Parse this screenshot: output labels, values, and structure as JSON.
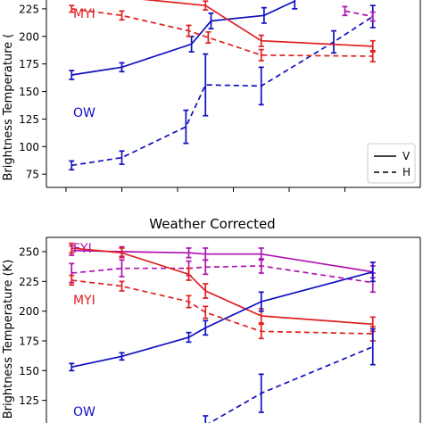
{
  "chart_data": [
    {
      "type": "line",
      "title": "",
      "ylabel": "Brightness Temperature (",
      "ylim": [
        63,
        233
      ],
      "yticks": [
        75,
        100,
        125,
        150,
        175,
        200,
        225
      ],
      "x": [
        0,
        1,
        2,
        3,
        4,
        5
      ],
      "series": [
        {
          "name": "V",
          "ice": "OW",
          "pol": "V",
          "color": "#1010c0",
          "style": "solid",
          "x": [
            0.1,
            1.0,
            2.25,
            2.6,
            3.55,
            4.1
          ],
          "values": [
            165,
            172,
            193,
            214,
            219,
            232
          ],
          "err": [
            4,
            4,
            7,
            7,
            7,
            7
          ]
        },
        {
          "name": "H",
          "ice": "OW",
          "pol": "H",
          "color": "#1010c0",
          "style": "dashed",
          "x": [
            0.1,
            1.0,
            2.15,
            2.5,
            3.5,
            4.8,
            5.5
          ],
          "values": [
            83,
            90,
            118,
            156,
            155,
            195,
            218
          ],
          "err": [
            4,
            6,
            15,
            28,
            17,
            10,
            10
          ]
        },
        {
          "name": "V",
          "ice": "MYI",
          "pol": "V",
          "color": "#e02020",
          "style": "solid",
          "x": [
            0.1,
            2.5,
            3.5,
            5.5
          ],
          "values": [
            240,
            228,
            196,
            191
          ],
          "err": [
            3,
            4,
            5,
            5
          ]
        },
        {
          "name": "H",
          "ice": "MYI",
          "pol": "H",
          "color": "#e02020",
          "style": "dashed",
          "x": [
            0.1,
            1.0,
            2.2,
            2.55,
            3.5,
            5.5
          ],
          "values": [
            225,
            219,
            205,
            199,
            183,
            182
          ],
          "err": [
            3,
            4,
            5,
            5,
            5,
            5
          ]
        },
        {
          "name": "H",
          "ice": "FYI",
          "pol": "H",
          "color": "#b010b0",
          "style": "dashed",
          "x": [
            5.0,
            5.5
          ],
          "values": [
            223,
            218
          ],
          "err": [
            4,
            4
          ]
        }
      ],
      "annotations": [
        {
          "text": "MYI",
          "color": "#e02020"
        },
        {
          "text": "OW",
          "color": "#1010c0"
        }
      ],
      "legend": {
        "placement": "bottom-right",
        "entries": [
          {
            "label": "V",
            "style": "solid"
          },
          {
            "label": "H",
            "style": "dashed"
          }
        ]
      }
    },
    {
      "type": "line",
      "title": "Weather Corrected",
      "ylabel": "Brightness Temperature (K)",
      "ylim": [
        106,
        262
      ],
      "yticks": [
        125,
        150,
        175,
        200,
        225,
        250
      ],
      "x": [
        0,
        1,
        2,
        3,
        4,
        5
      ],
      "series": [
        {
          "name": "V",
          "ice": "FYI",
          "pol": "V",
          "color": "#b010b0",
          "style": "solid",
          "x": [
            0.1,
            1.0,
            2.2,
            2.5,
            3.5,
            5.5
          ],
          "values": [
            251,
            250,
            249,
            248,
            248,
            233
          ],
          "err": [
            4,
            4,
            4,
            5,
            5,
            5
          ]
        },
        {
          "name": "H",
          "ice": "FYI",
          "pol": "H",
          "color": "#b010b0",
          "style": "dashed",
          "x": [
            0.1,
            1.0,
            2.2,
            2.5,
            3.5,
            5.5
          ],
          "values": [
            232,
            236,
            236,
            237,
            238,
            224
          ],
          "err": [
            8,
            7,
            6,
            6,
            6,
            8
          ]
        },
        {
          "name": "V",
          "ice": "MYI",
          "pol": "V",
          "color": "#e02020",
          "style": "solid",
          "x": [
            0.1,
            1.0,
            2.2,
            2.5,
            3.5,
            5.5
          ],
          "values": [
            253,
            249,
            231,
            217,
            196,
            189
          ],
          "err": [
            4,
            4,
            5,
            6,
            6,
            6
          ]
        },
        {
          "name": "H",
          "ice": "MYI",
          "pol": "H",
          "color": "#e02020",
          "style": "dashed",
          "x": [
            0.1,
            1.0,
            2.2,
            2.5,
            3.5,
            5.5
          ],
          "values": [
            226,
            221,
            208,
            199,
            183,
            181
          ],
          "err": [
            4,
            4,
            5,
            5,
            6,
            6
          ]
        },
        {
          "name": "V",
          "ice": "OW",
          "pol": "V",
          "color": "#1010c0",
          "style": "solid",
          "x": [
            0.1,
            1.0,
            2.2,
            2.5,
            3.5,
            5.5
          ],
          "values": [
            153,
            162,
            178,
            186,
            208,
            233
          ],
          "err": [
            3,
            3,
            4,
            6,
            8,
            8
          ]
        },
        {
          "name": "H",
          "ice": "OW",
          "pol": "H",
          "color": "#1010c0",
          "style": "dashed",
          "x": [
            2.5,
            3.5,
            5.5
          ],
          "values": [
            104,
            131,
            170
          ],
          "err": [
            8,
            16,
            15
          ]
        }
      ],
      "annotations": [
        {
          "text": "FYI",
          "color": "#b010b0"
        },
        {
          "text": "MYI",
          "color": "#e02020"
        },
        {
          "text": "OW",
          "color": "#1010c0"
        }
      ]
    }
  ]
}
